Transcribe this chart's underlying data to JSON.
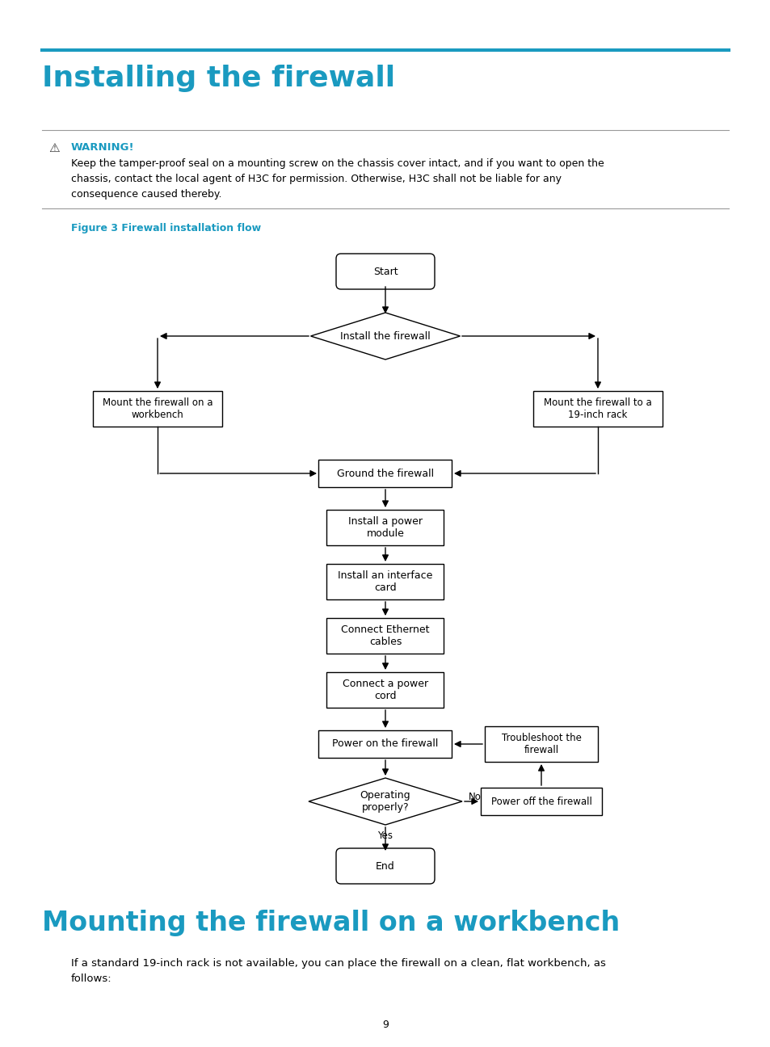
{
  "title": "Installing the firewall",
  "title_color": "#1a9ac0",
  "title_line_color": "#1a9ac0",
  "warning_color": "#1a9ac0",
  "warning_text": "WARNING!",
  "warning_body": "Keep the tamper-proof seal on a mounting screw on the chassis cover intact, and if you want to open the\nchassis, contact the local agent of H3C for permission. Otherwise, H3C shall not be liable for any\nconsequence caused thereby.",
  "figure_label": "Figure 3 Firewall installation flow",
  "figure_label_color": "#1a9ac0",
  "section2_title": "Mounting the firewall on a workbench",
  "section2_color": "#1a9ac0",
  "section2_body": "If a standard 19-inch rack is not available, you can place the firewall on a clean, flat workbench, as\nfollows:",
  "page_number": "9",
  "bg_color": "#ffffff",
  "box_color": "#000000",
  "text_color": "#000000",
  "arrow_color": "#000000"
}
